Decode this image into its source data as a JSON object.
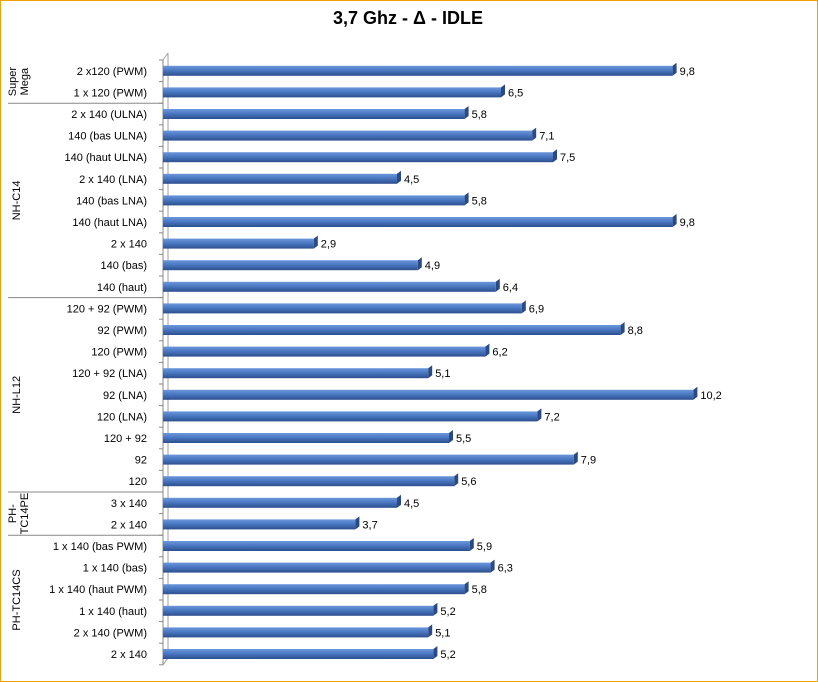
{
  "chart_data": {
    "type": "bar",
    "orientation": "horizontal",
    "title": "3,7 Ghz - Δ - IDLE",
    "xlabel": "",
    "ylabel": "",
    "xlim": [
      0,
      10.5
    ],
    "grid": false,
    "legend": "none",
    "bar_color": "#4a78c2",
    "groups": [
      {
        "name": "Super Mega",
        "label_lines": [
          "Super",
          "Mega"
        ],
        "categories": [
          "2 x120 (PWM)",
          "1 x 120 (PWM)"
        ]
      },
      {
        "name": "NH-C14",
        "label_lines": [
          "NH-C14"
        ],
        "categories": [
          "2 x 140 (ULNA)",
          "140 (bas ULNA)",
          "140 (haut ULNA)",
          "2 x 140 (LNA)",
          "140 (bas LNA)",
          "140 (haut LNA)",
          "2 x 140",
          "140 (bas)",
          "140 (haut)"
        ]
      },
      {
        "name": "NH-L12",
        "label_lines": [
          "NH-L12"
        ],
        "categories": [
          "120 + 92 (PWM)",
          "92 (PWM)",
          "120 (PWM)",
          "120 + 92 (LNA)",
          "92 (LNA)",
          "120 (LNA)",
          "120 + 92",
          "92",
          "120"
        ]
      },
      {
        "name": "PH-TC14PE",
        "label_lines": [
          "PH-",
          "TC14PE"
        ],
        "categories": [
          "3 x 140",
          "2 x 140"
        ]
      },
      {
        "name": "PH-TC14CS",
        "label_lines": [
          "PH-TC14CS"
        ],
        "categories": [
          "1 x 140 (bas PWM)",
          "1 x 140 (bas)",
          "1 x 140 (haut PWM)",
          "1 x 140 (haut)",
          "2 x 140 (PWM)",
          "2 x 140"
        ]
      }
    ],
    "categories": [
      "2 x120 (PWM)",
      "1 x 120 (PWM)",
      "2 x 140 (ULNA)",
      "140 (bas ULNA)",
      "140 (haut ULNA)",
      "2 x 140 (LNA)",
      "140 (bas LNA)",
      "140 (haut LNA)",
      "2 x 140",
      "140 (bas)",
      "140 (haut)",
      "120 + 92 (PWM)",
      "92 (PWM)",
      "120 (PWM)",
      "120 + 92 (LNA)",
      "92 (LNA)",
      "120 (LNA)",
      "120 + 92",
      "92",
      "120",
      "3 x 140",
      "2 x 140",
      "1 x 140 (bas PWM)",
      "1 x 140 (bas)",
      "1 x 140 (haut PWM)",
      "1 x 140 (haut)",
      "2 x 140 (PWM)",
      "2 x 140"
    ],
    "values": [
      9.8,
      6.5,
      5.8,
      7.1,
      7.5,
      4.5,
      5.8,
      9.8,
      2.9,
      4.9,
      6.4,
      6.9,
      8.8,
      6.2,
      5.1,
      10.2,
      7.2,
      5.5,
      7.9,
      5.6,
      4.5,
      3.7,
      5.9,
      6.3,
      5.8,
      5.2,
      5.1,
      5.2
    ],
    "value_labels": [
      "9,8",
      "6,5",
      "5,8",
      "7,1",
      "7,5",
      "4,5",
      "5,8",
      "9,8",
      "2,9",
      "4,9",
      "6,4",
      "6,9",
      "8,8",
      "6,2",
      "5,1",
      "10,2",
      "7,2",
      "5,5",
      "7,9",
      "5,6",
      "4,5",
      "3,7",
      "5,9",
      "6,3",
      "5,8",
      "5,2",
      "5,1",
      "5,2"
    ]
  }
}
